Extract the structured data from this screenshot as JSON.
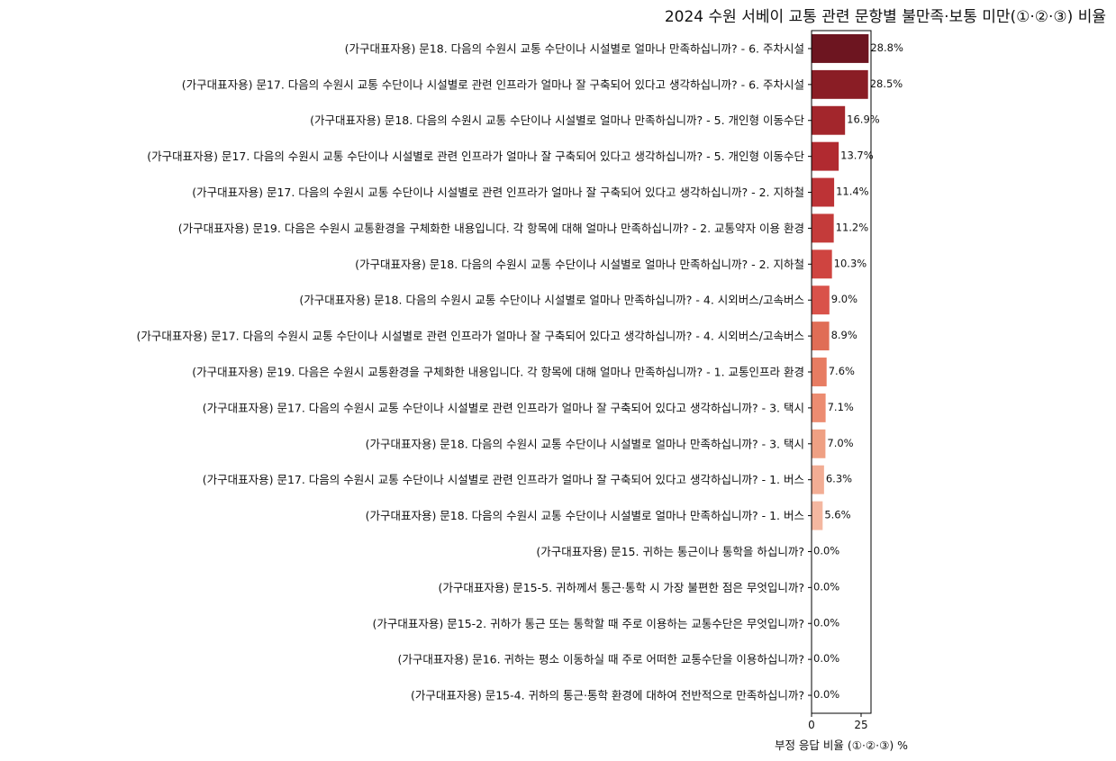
{
  "chart_data": {
    "type": "bar",
    "orientation": "horizontal",
    "title": "2024 수원 서베이 교통 관련 문항별 불만족·보통 미만(①·②·③) 비율",
    "xlabel": "부정 응답 비율 (①·②·③) %",
    "ylabel": "",
    "xlim": [
      0,
      30
    ],
    "xticks": [
      0,
      25
    ],
    "grid": false,
    "legend": "none",
    "value_suffix": "%",
    "categories": [
      "(가구대표자용) 문18. 다음의 수원시 교통 수단이나 시설별로 얼마나 만족하십니까? - 6. 주차시설",
      "(가구대표자용) 문17. 다음의 수원시 교통 수단이나 시설별로 관련 인프라가 얼마나 잘 구축되어 있다고 생각하십니까? - 6. 주차시설",
      "(가구대표자용) 문18. 다음의 수원시 교통 수단이나 시설별로 얼마나 만족하십니까? - 5. 개인형 이동수단",
      "(가구대표자용) 문17. 다음의 수원시 교통 수단이나 시설별로 관련 인프라가 얼마나 잘 구축되어 있다고 생각하십니까? - 5. 개인형 이동수단",
      "(가구대표자용) 문17. 다음의 수원시 교통 수단이나 시설별로 관련 인프라가 얼마나 잘 구축되어 있다고 생각하십니까? - 2. 지하철",
      "(가구대표자용) 문19. 다음은 수원시 교통환경을 구체화한 내용입니다. 각 항목에 대해 얼마나 만족하십니까? - 2. 교통약자 이용 환경",
      "(가구대표자용) 문18. 다음의 수원시 교통 수단이나 시설별로 얼마나 만족하십니까? - 2. 지하철",
      "(가구대표자용) 문18. 다음의 수원시 교통 수단이나 시설별로 얼마나 만족하십니까? - 4. 시외버스/고속버스",
      "(가구대표자용) 문17. 다음의 수원시 교통 수단이나 시설별로 관련 인프라가 얼마나 잘 구축되어 있다고 생각하십니까? - 4. 시외버스/고속버스",
      "(가구대표자용) 문19. 다음은 수원시 교통환경을 구체화한 내용입니다. 각 항목에 대해 얼마나 만족하십니까? - 1. 교통인프라 환경",
      "(가구대표자용) 문17. 다음의 수원시 교통 수단이나 시설별로 관련 인프라가 얼마나 잘 구축되어 있다고 생각하십니까? - 3. 택시",
      "(가구대표자용) 문18. 다음의 수원시 교통 수단이나 시설별로 얼마나 만족하십니까? - 3. 택시",
      "(가구대표자용) 문17. 다음의 수원시 교통 수단이나 시설별로 관련 인프라가 얼마나 잘 구축되어 있다고 생각하십니까? - 1. 버스",
      "(가구대표자용) 문18. 다음의 수원시 교통 수단이나 시설별로 얼마나 만족하십니까? - 1. 버스",
      "(가구대표자용) 문15. 귀하는 통근이나 통학을 하십니까?",
      "(가구대표자용) 문15-5. 귀하께서 통근·통학 시 가장 불편한 점은 무엇입니까?",
      "(가구대표자용) 문15-2. 귀하가 통근 또는 통학할 때 주로 이용하는 교통수단은 무엇입니까?",
      "(가구대표자용) 문16. 귀하는 평소 이동하실 때 주로 어떠한 교통수단을 이용하십니까?",
      "(가구대표자용) 문15-4. 귀하의 통근·통학 환경에 대하여 전반적으로 만족하십니까?"
    ],
    "values": [
      28.8,
      28.5,
      16.9,
      13.7,
      11.4,
      11.2,
      10.3,
      9.0,
      8.9,
      7.6,
      7.1,
      7.0,
      6.3,
      5.6,
      0.0,
      0.0,
      0.0,
      0.0,
      0.0
    ],
    "value_labels": [
      "28.8%",
      "28.5%",
      "16.9%",
      "13.7%",
      "11.4%",
      "11.2%",
      "10.3%",
      "9.0%",
      "8.9%",
      "7.6%",
      "7.1%",
      "7.0%",
      "6.3%",
      "5.6%",
      "0.0%",
      "0.0%",
      "0.0%",
      "0.0%",
      "0.0%"
    ],
    "bar_colors": [
      "#6d1520",
      "#8a1d25",
      "#a3262c",
      "#b12a30",
      "#bd3336",
      "#c43b3a",
      "#cf4440",
      "#d9524a",
      "#e06d56",
      "#e77c62",
      "#ec8c71",
      "#efa083",
      "#f2ad94",
      "#f4b7a0",
      "#f6c7b3",
      "#f8d3c3",
      "#f9dccf",
      "#fbe5da",
      "#fdeee6"
    ]
  }
}
